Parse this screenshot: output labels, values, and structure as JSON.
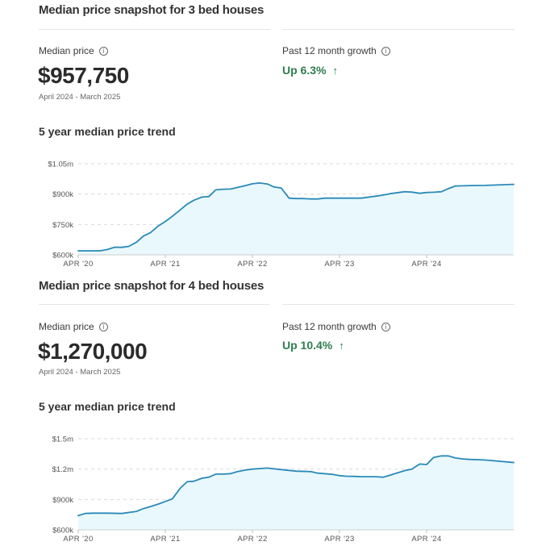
{
  "sections": [
    {
      "title": "Median price snapshot for 3 bed houses",
      "median_label": "Median price",
      "median_value": "$957,750",
      "period": "April 2024 - March 2025",
      "growth_label": "Past 12 month growth",
      "growth_value": "Up 6.3%",
      "trend_title": "5 year median price trend"
    },
    {
      "title": "Median price snapshot for 4 bed houses",
      "median_label": "Median price",
      "median_value": "$1,270,000",
      "period": "April 2024 - March 2025",
      "growth_label": "Past 12 month growth",
      "growth_value": "Up 10.4%",
      "trend_title": "5 year median price trend"
    }
  ],
  "icons": {
    "info": "info-icon",
    "growth": "arrow-up-icon"
  },
  "colors": {
    "line": "#2a8ab8",
    "fill": "#e9f8fc",
    "grid": "#d9d9d9",
    "growth": "#2e7d4f"
  },
  "chart_data": [
    {
      "type": "area",
      "title": "5 year median price trend",
      "xlabel": "",
      "ylabel": "",
      "x_ticks": [
        "APR '20",
        "APR '21",
        "APR '22",
        "APR '23",
        "APR '24"
      ],
      "y_ticks": [
        {
          "value": 600000,
          "label": "$600k"
        },
        {
          "value": 750000,
          "label": "$750k"
        },
        {
          "value": 900000,
          "label": "$900k"
        },
        {
          "value": 1050000,
          "label": "$1.05m"
        }
      ],
      "ylim": [
        600000,
        1050000
      ],
      "x_range": [
        2020.25,
        2025.25
      ],
      "grid": true,
      "x": [
        2020.25,
        2020.5,
        2020.58,
        2020.67,
        2020.75,
        2020.83,
        2020.92,
        2021.0,
        2021.08,
        2021.17,
        2021.25,
        2021.33,
        2021.42,
        2021.5,
        2021.58,
        2021.67,
        2021.75,
        2021.83,
        2021.92,
        2022.0,
        2022.08,
        2022.17,
        2022.25,
        2022.33,
        2022.42,
        2022.5,
        2022.58,
        2022.67,
        2022.75,
        2022.83,
        2022.92,
        2023.0,
        2023.08,
        2023.17,
        2023.25,
        2023.33,
        2023.5,
        2023.67,
        2023.75,
        2023.83,
        2024.0,
        2024.08,
        2024.17,
        2024.25,
        2024.33,
        2024.42,
        2024.5,
        2024.58,
        2024.75,
        2024.92,
        2025.25
      ],
      "values": [
        620000,
        620000,
        626000,
        638000,
        637000,
        642000,
        663000,
        693000,
        710000,
        743000,
        765000,
        790000,
        822000,
        850000,
        870000,
        885000,
        888000,
        921000,
        924000,
        925000,
        933000,
        942000,
        951000,
        955000,
        950000,
        935000,
        930000,
        880000,
        878000,
        878000,
        876000,
        876000,
        880000,
        880000,
        880000,
        880000,
        880000,
        890000,
        895000,
        902000,
        912000,
        910000,
        904000,
        908000,
        909000,
        912000,
        927000,
        940000,
        942000,
        943000,
        948000
      ]
    },
    {
      "type": "area",
      "title": "5 year median price trend",
      "xlabel": "",
      "ylabel": "",
      "x_ticks": [
        "APR '20",
        "APR '21",
        "APR '22",
        "APR '23",
        "APR '24"
      ],
      "y_ticks": [
        {
          "value": 600000,
          "label": "$600k"
        },
        {
          "value": 900000,
          "label": "$900k"
        },
        {
          "value": 1200000,
          "label": "$1.2m"
        },
        {
          "value": 1500000,
          "label": "$1.5m"
        }
      ],
      "ylim": [
        600000,
        1500000
      ],
      "x_range": [
        2020.25,
        2025.25
      ],
      "grid": true,
      "x": [
        2020.25,
        2020.33,
        2020.42,
        2020.58,
        2020.75,
        2020.92,
        2021.0,
        2021.08,
        2021.17,
        2021.25,
        2021.33,
        2021.42,
        2021.5,
        2021.58,
        2021.67,
        2021.75,
        2021.83,
        2021.92,
        2022.0,
        2022.08,
        2022.17,
        2022.25,
        2022.42,
        2022.58,
        2022.75,
        2022.92,
        2023.0,
        2023.17,
        2023.25,
        2023.33,
        2023.42,
        2023.5,
        2023.67,
        2023.75,
        2023.83,
        2024.0,
        2024.08,
        2024.17,
        2024.25,
        2024.33,
        2024.42,
        2024.5,
        2024.58,
        2024.67,
        2024.75,
        2024.92,
        2025.25
      ],
      "values": [
        740000,
        762000,
        765000,
        765000,
        762000,
        782000,
        810000,
        830000,
        855000,
        880000,
        905000,
        1010000,
        1075000,
        1080000,
        1110000,
        1120000,
        1150000,
        1150000,
        1155000,
        1175000,
        1190000,
        1200000,
        1210000,
        1195000,
        1180000,
        1175000,
        1160000,
        1148000,
        1135000,
        1130000,
        1128000,
        1125000,
        1125000,
        1120000,
        1140000,
        1185000,
        1200000,
        1250000,
        1245000,
        1315000,
        1330000,
        1330000,
        1310000,
        1300000,
        1295000,
        1290000,
        1265000
      ]
    }
  ]
}
